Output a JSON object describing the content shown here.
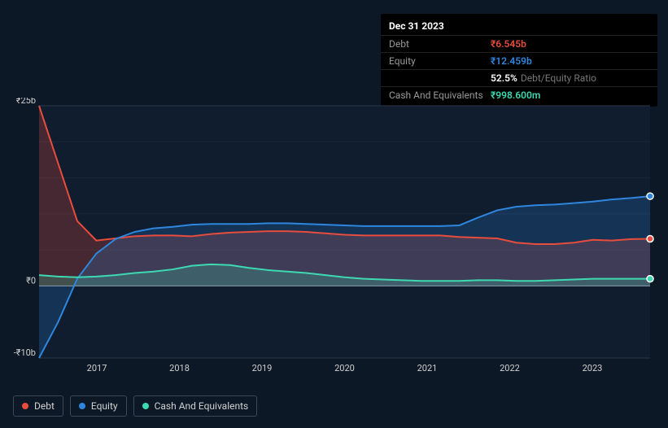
{
  "tooltip": {
    "title": "Dec 31 2023",
    "rows": [
      {
        "label": "Debt",
        "value": "₹6.545b",
        "color": "#e74c3c"
      },
      {
        "label": "Equity",
        "value": "₹12.459b",
        "color": "#2e86de"
      },
      {
        "label": "",
        "value": "52.5%",
        "extra": "Debt/Equity Ratio",
        "color": "#ffffff"
      },
      {
        "label": "Cash And Equivalents",
        "value": "₹998.600m",
        "color": "#3dd9b0"
      }
    ]
  },
  "chart": {
    "type": "area",
    "background": "#0d1826",
    "grid_color": "#2a3848",
    "zero_line_color": "#9aa5b5",
    "y_axis": {
      "ticks": [
        {
          "v": 25,
          "label": "₹25b"
        },
        {
          "v": 0,
          "label": "₹0"
        },
        {
          "v": -10,
          "label": "-₹10b"
        }
      ],
      "min": -10,
      "max": 25,
      "label_fontsize": 11,
      "label_color": "#d0d0d0"
    },
    "x_axis": {
      "labels": [
        "2017",
        "2018",
        "2019",
        "2020",
        "2021",
        "2022",
        "2023"
      ],
      "label_fontsize": 11,
      "label_color": "#d0d0d0"
    },
    "series": [
      {
        "name": "Debt",
        "color": "#e74c3c",
        "fill": "#e74c3c",
        "fill_opacity": 0.25,
        "line_width": 2,
        "data": [
          25,
          17,
          9,
          6.3,
          6.6,
          6.9,
          7,
          7,
          6.9,
          7.2,
          7.4,
          7.5,
          7.6,
          7.6,
          7.5,
          7.3,
          7.1,
          7,
          7,
          7,
          7,
          7,
          6.8,
          6.7,
          6.6,
          6,
          5.8,
          5.8,
          6,
          6.4,
          6.3,
          6.5,
          6.545
        ]
      },
      {
        "name": "Equity",
        "color": "#2e86de",
        "fill": "#2e86de",
        "fill_opacity": 0.22,
        "line_width": 2,
        "data": [
          -10,
          -5,
          1,
          4.5,
          6.5,
          7.5,
          8,
          8.2,
          8.5,
          8.6,
          8.6,
          8.6,
          8.7,
          8.7,
          8.6,
          8.5,
          8.4,
          8.3,
          8.3,
          8.3,
          8.3,
          8.3,
          8.4,
          9.5,
          10.5,
          11,
          11.2,
          11.3,
          11.5,
          11.7,
          12,
          12.2,
          12.459
        ]
      },
      {
        "name": "Cash And Equivalents",
        "color": "#3dd9b0",
        "fill": "#3dd9b0",
        "fill_opacity": 0.22,
        "line_width": 2,
        "data": [
          1.5,
          1.3,
          1.2,
          1.3,
          1.5,
          1.8,
          2,
          2.3,
          2.8,
          3,
          2.9,
          2.5,
          2.2,
          2,
          1.8,
          1.5,
          1.2,
          1,
          0.9,
          0.8,
          0.7,
          0.7,
          0.7,
          0.8,
          0.8,
          0.7,
          0.7,
          0.8,
          0.9,
          1,
          1,
          1,
          0.9986
        ]
      }
    ],
    "end_markers": true,
    "end_marker_radius": 4
  },
  "legend": {
    "items": [
      {
        "label": "Debt",
        "color": "#e74c3c"
      },
      {
        "label": "Equity",
        "color": "#2e86de"
      },
      {
        "label": "Cash And Equivalents",
        "color": "#3dd9b0"
      }
    ]
  }
}
